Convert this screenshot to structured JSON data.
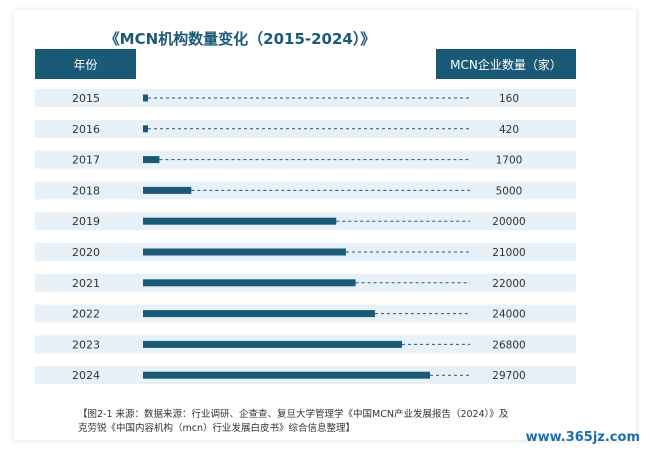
{
  "chart_data": {
    "type": "bar",
    "title": "《MCN机构数量变化（2015-2024）》",
    "column_headers": {
      "year": "年份",
      "count": "MCN企业数量（家）"
    },
    "categories": [
      "2015",
      "2016",
      "2017",
      "2018",
      "2019",
      "2020",
      "2021",
      "2022",
      "2023",
      "2024"
    ],
    "values": [
      160,
      420,
      1700,
      5000,
      20000,
      21000,
      22000,
      24000,
      26800,
      29700
    ],
    "value_labels": [
      "160",
      "420",
      "1700",
      "5000",
      "20000",
      "21000",
      "22000",
      "24000",
      "26800",
      "29700"
    ],
    "colors": {
      "bar": "#1b5a77",
      "row_bg": "#e8f1f8",
      "header_bg": "#1b5a77",
      "dash": "#1b5a77"
    }
  },
  "caption": {
    "line1": "【图2-1 来源：数据来源：行业调研、企查查、复旦大学管理学《中国MCN产业发展报告（2024）》及",
    "line2": "克劳锐《中国内容机构（mcn）行业发展白皮书》综合信息整理】"
  },
  "watermark": "www.365jz.com"
}
